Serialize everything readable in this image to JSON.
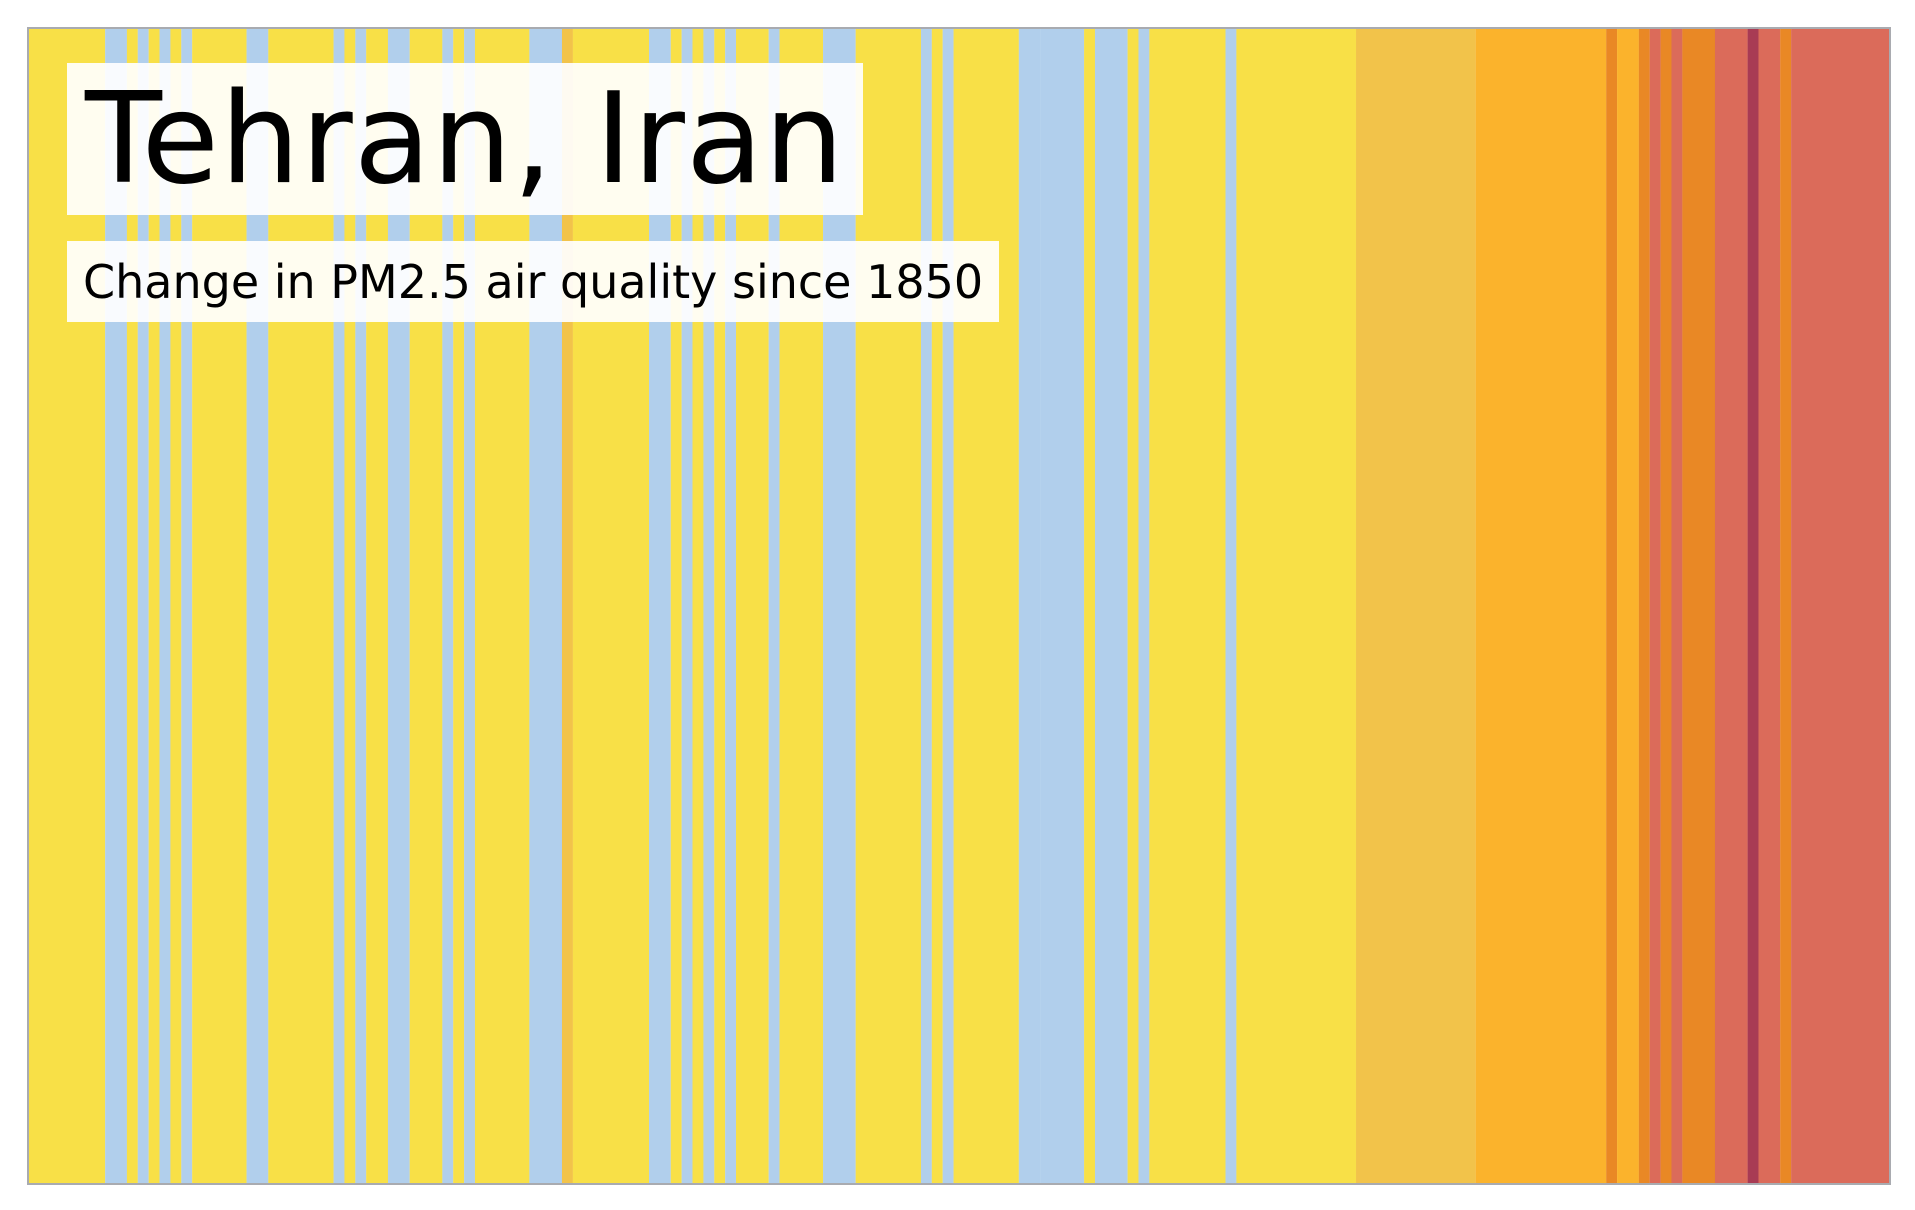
{
  "chart_data": {
    "type": "heatmap",
    "title": "Tehran, Iran",
    "subtitle": "Change in PM2.5 air quality since 1850",
    "legend": "none",
    "grid": false,
    "x_start": 1850,
    "x_end": 2021,
    "stripes": [
      {
        "years": [
          1850,
          1857
        ],
        "color": "#f8e047"
      },
      {
        "years": [
          1857,
          1859
        ],
        "color": "#b1cfec"
      },
      {
        "years": [
          1859,
          1860
        ],
        "color": "#f8e047"
      },
      {
        "years": [
          1860,
          1861
        ],
        "color": "#b1cfec"
      },
      {
        "years": [
          1861,
          1862
        ],
        "color": "#f8e047"
      },
      {
        "years": [
          1862,
          1863
        ],
        "color": "#b1cfec"
      },
      {
        "years": [
          1863,
          1864
        ],
        "color": "#f8e047"
      },
      {
        "years": [
          1864,
          1865
        ],
        "color": "#b1cfec"
      },
      {
        "years": [
          1865,
          1870
        ],
        "color": "#f8e047"
      },
      {
        "years": [
          1870,
          1872
        ],
        "color": "#b1cfec"
      },
      {
        "years": [
          1872,
          1878
        ],
        "color": "#f8e047"
      },
      {
        "years": [
          1878,
          1879
        ],
        "color": "#b1cfec"
      },
      {
        "years": [
          1879,
          1880
        ],
        "color": "#f8e047"
      },
      {
        "years": [
          1880,
          1881
        ],
        "color": "#b1cfec"
      },
      {
        "years": [
          1881,
          1883
        ],
        "color": "#f8e047"
      },
      {
        "years": [
          1883,
          1885
        ],
        "color": "#b1cfec"
      },
      {
        "years": [
          1885,
          1888
        ],
        "color": "#f8e047"
      },
      {
        "years": [
          1888,
          1889
        ],
        "color": "#b1cfec"
      },
      {
        "years": [
          1889,
          1890
        ],
        "color": "#f8e047"
      },
      {
        "years": [
          1890,
          1891
        ],
        "color": "#b1cfec"
      },
      {
        "years": [
          1891,
          1896
        ],
        "color": "#f8e047"
      },
      {
        "years": [
          1896,
          1899
        ],
        "color": "#b1cfec"
      },
      {
        "years": [
          1899,
          1900
        ],
        "color": "#f2c34a"
      },
      {
        "years": [
          1900,
          1907
        ],
        "color": "#f8e047"
      },
      {
        "years": [
          1907,
          1909
        ],
        "color": "#b1cfec"
      },
      {
        "years": [
          1909,
          1910
        ],
        "color": "#f8e047"
      },
      {
        "years": [
          1910,
          1911
        ],
        "color": "#b1cfec"
      },
      {
        "years": [
          1911,
          1912
        ],
        "color": "#f8e047"
      },
      {
        "years": [
          1912,
          1913
        ],
        "color": "#b1cfec"
      },
      {
        "years": [
          1913,
          1914
        ],
        "color": "#f8e047"
      },
      {
        "years": [
          1914,
          1915
        ],
        "color": "#b1cfec"
      },
      {
        "years": [
          1915,
          1918
        ],
        "color": "#f8e047"
      },
      {
        "years": [
          1918,
          1919
        ],
        "color": "#b1cfec"
      },
      {
        "years": [
          1919,
          1923
        ],
        "color": "#f8e047"
      },
      {
        "years": [
          1923,
          1926
        ],
        "color": "#b1cfec"
      },
      {
        "years": [
          1926,
          1932
        ],
        "color": "#f8e047"
      },
      {
        "years": [
          1932,
          1933
        ],
        "color": "#b1cfec"
      },
      {
        "years": [
          1933,
          1934
        ],
        "color": "#f8e047"
      },
      {
        "years": [
          1934,
          1935
        ],
        "color": "#b1cfec"
      },
      {
        "years": [
          1935,
          1941
        ],
        "color": "#f8e047"
      },
      {
        "years": [
          1941,
          1943
        ],
        "color": "#b1cfec"
      },
      {
        "years": [
          1943,
          1947
        ],
        "color": "#b1cfec"
      },
      {
        "years": [
          1947,
          1948
        ],
        "color": "#f8e047"
      },
      {
        "years": [
          1948,
          1951
        ],
        "color": "#b1cfec"
      },
      {
        "years": [
          1951,
          1952
        ],
        "color": "#f8e047"
      },
      {
        "years": [
          1952,
          1953
        ],
        "color": "#b1cfec"
      },
      {
        "years": [
          1953,
          1960
        ],
        "color": "#f8e047"
      },
      {
        "years": [
          1960,
          1961
        ],
        "color": "#b1cfec"
      },
      {
        "years": [
          1961,
          1972
        ],
        "color": "#f8e047"
      },
      {
        "years": [
          1972,
          1983
        ],
        "color": "#f2c34a"
      },
      {
        "years": [
          1983,
          1995
        ],
        "color": "#fbb32c"
      },
      {
        "years": [
          1995,
          1996
        ],
        "color": "#e98825"
      },
      {
        "years": [
          1996,
          1998
        ],
        "color": "#fbb32c"
      },
      {
        "years": [
          1998,
          1999
        ],
        "color": "#e98825"
      },
      {
        "years": [
          1999,
          2000
        ],
        "color": "#db6b5a"
      },
      {
        "years": [
          2000,
          2001
        ],
        "color": "#e98825"
      },
      {
        "years": [
          2001,
          2002
        ],
        "color": "#db6b5a"
      },
      {
        "years": [
          2002,
          2005
        ],
        "color": "#e98825"
      },
      {
        "years": [
          2005,
          2008
        ],
        "color": "#db6b5a"
      },
      {
        "years": [
          2008,
          2009
        ],
        "color": "#a83b54"
      },
      {
        "years": [
          2009,
          2011
        ],
        "color": "#db6b5a"
      },
      {
        "years": [
          2011,
          2012
        ],
        "color": "#e98825"
      },
      {
        "years": [
          2012,
          2021
        ],
        "color": "#db6b5a"
      }
    ]
  }
}
